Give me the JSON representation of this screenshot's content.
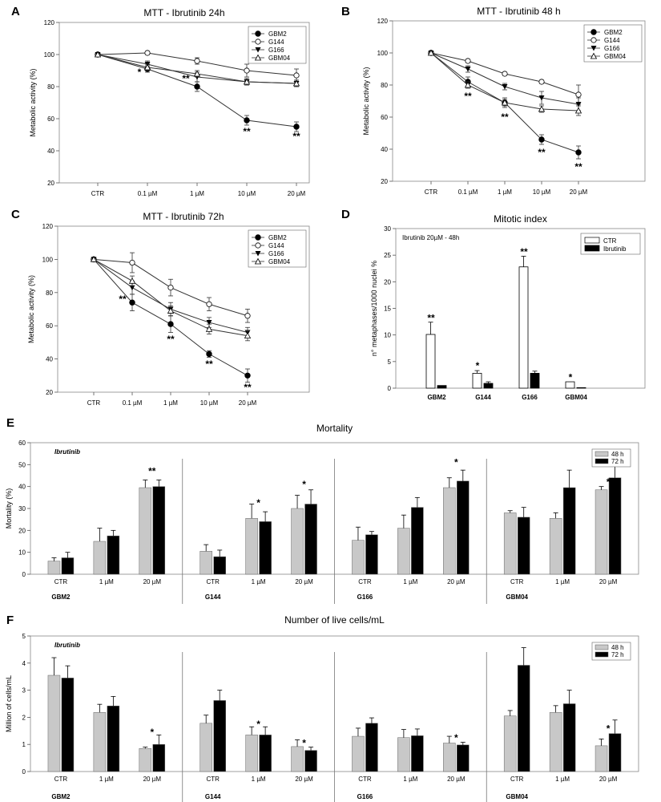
{
  "panels": {
    "A": "A",
    "B": "B",
    "C": "C",
    "D": "D",
    "E": "E",
    "F": "F"
  },
  "chart_data": [
    {
      "id": "A",
      "type": "line",
      "title": "MTT - Ibrutinib 24h",
      "xlabel": "",
      "ylabel": "Metabolic activity (%)",
      "categories": [
        "CTR",
        "0.1 µM",
        "1 µM",
        "10 µM",
        "20 µM"
      ],
      "ylim": [
        20,
        120
      ],
      "yticks": [
        20,
        40,
        60,
        80,
        100,
        120
      ],
      "series": [
        {
          "name": "GBM2",
          "marker": "filled-circle",
          "values": [
            100,
            91,
            80,
            59,
            55
          ],
          "errors": [
            0,
            2,
            3,
            3,
            3
          ]
        },
        {
          "name": "G144",
          "marker": "open-circle",
          "values": [
            100,
            101,
            96,
            90,
            87
          ],
          "errors": [
            0,
            1,
            2,
            4,
            4
          ]
        },
        {
          "name": "G166",
          "marker": "filled-triangle-down",
          "values": [
            100,
            94,
            86,
            83,
            82
          ],
          "errors": [
            0,
            2,
            3,
            2,
            2
          ]
        },
        {
          "name": "GBM04",
          "marker": "open-triangle-up",
          "values": [
            100,
            92,
            88,
            83,
            82
          ],
          "errors": [
            0,
            2,
            2,
            2,
            2
          ]
        }
      ],
      "annotations": [
        {
          "text": "*",
          "category": 1,
          "y": 89,
          "dx": -10
        },
        {
          "text": "**",
          "category": 2,
          "y": 85,
          "dx": -14
        },
        {
          "text": "**",
          "category": 3,
          "y": 52,
          "dx": 0
        },
        {
          "text": "**",
          "category": 4,
          "y": 49,
          "dx": 0
        }
      ]
    },
    {
      "id": "B",
      "type": "line",
      "title": "MTT - Ibrutinib 48 h",
      "xlabel": "",
      "ylabel": "Metabolic activity (%)",
      "categories": [
        "CTR",
        "0.1 µM",
        "1 µM",
        "10 µM",
        "20 µM"
      ],
      "ylim": [
        20,
        120
      ],
      "yticks": [
        20,
        40,
        60,
        80,
        100,
        120
      ],
      "series": [
        {
          "name": "GBM2",
          "marker": "filled-circle",
          "values": [
            100,
            82,
            69,
            46,
            38
          ],
          "errors": [
            0,
            3,
            3,
            3,
            4
          ]
        },
        {
          "name": "G144",
          "marker": "open-circle",
          "values": [
            100,
            95,
            87,
            82,
            74
          ],
          "errors": [
            0,
            1,
            1,
            1,
            6
          ]
        },
        {
          "name": "G166",
          "marker": "filled-triangle-down",
          "values": [
            100,
            90,
            79,
            72,
            68
          ],
          "errors": [
            0,
            2,
            2,
            4,
            4
          ]
        },
        {
          "name": "GBM04",
          "marker": "open-triangle-up",
          "values": [
            100,
            80,
            69,
            65,
            64
          ],
          "errors": [
            0,
            2,
            2,
            2,
            3
          ]
        }
      ],
      "annotations": [
        {
          "text": "**",
          "category": 1,
          "y": 73,
          "dx": 0
        },
        {
          "text": "**",
          "category": 2,
          "y": 60,
          "dx": 0
        },
        {
          "text": "**",
          "category": 3,
          "y": 38,
          "dx": 0
        },
        {
          "text": "**",
          "category": 4,
          "y": 29,
          "dx": 0
        }
      ]
    },
    {
      "id": "C",
      "type": "line",
      "title": "MTT - Ibrutinib 72h",
      "xlabel": "",
      "ylabel": "Metabolic activity (%)",
      "categories": [
        "CTR",
        "0.1 µM",
        "1 µM",
        "10 µM",
        "20 µM"
      ],
      "ylim": [
        20,
        120
      ],
      "yticks": [
        20,
        40,
        60,
        80,
        100,
        120
      ],
      "series": [
        {
          "name": "GBM2",
          "marker": "filled-circle",
          "values": [
            100,
            74,
            61,
            43,
            30
          ],
          "errors": [
            0,
            5,
            5,
            2,
            4
          ]
        },
        {
          "name": "G144",
          "marker": "open-circle",
          "values": [
            100,
            98,
            83,
            73,
            66
          ],
          "errors": [
            0,
            6,
            5,
            4,
            4
          ]
        },
        {
          "name": "G166",
          "marker": "filled-triangle-down",
          "values": [
            100,
            83,
            70,
            62,
            56
          ],
          "errors": [
            0,
            4,
            4,
            3,
            3
          ]
        },
        {
          "name": "GBM04",
          "marker": "open-triangle-up",
          "values": [
            100,
            87,
            69,
            58,
            54
          ],
          "errors": [
            0,
            3,
            3,
            3,
            3
          ]
        }
      ],
      "annotations": [
        {
          "text": "**",
          "category": 1,
          "y": 76,
          "dx": -12
        },
        {
          "text": "**",
          "category": 2,
          "y": 52,
          "dx": 0
        },
        {
          "text": "**",
          "category": 3,
          "y": 37,
          "dx": 0
        },
        {
          "text": "**",
          "category": 4,
          "y": 23,
          "dx": 0
        }
      ]
    },
    {
      "id": "D",
      "type": "bar",
      "title": "Mitotic index",
      "subtitle": "Ibrutinib 20µM - 48h",
      "xlabel": "",
      "ylabel": "n° metaphases/1000 nuclei %",
      "categories": [
        "GBM2",
        "G144",
        "G166",
        "GBM04"
      ],
      "ylim": [
        0,
        30
      ],
      "yticks": [
        0,
        5,
        10,
        15,
        20,
        25,
        30
      ],
      "series": [
        {
          "name": "CTR",
          "color": "#ffffff",
          "values": [
            10.1,
            2.8,
            22.8,
            1.2
          ],
          "errors": [
            2.3,
            0.5,
            2.0,
            0
          ]
        },
        {
          "name": "Ibrutinib",
          "color": "#000000",
          "values": [
            0.5,
            0.9,
            2.8,
            0.1
          ],
          "errors": [
            0,
            0.3,
            0.4,
            0
          ]
        }
      ],
      "annotations": [
        {
          "text": "**",
          "category": 0,
          "y": 13.2
        },
        {
          "text": "*",
          "category": 1,
          "y": 4.2
        },
        {
          "text": "**",
          "category": 2,
          "y": 25.6
        },
        {
          "text": "*",
          "category": 3,
          "y": 2.0
        }
      ]
    },
    {
      "id": "E",
      "type": "bar",
      "title": "Mortality",
      "subtitle": "Ibrutinib",
      "xlabel": "",
      "ylabel": "Mortality (%)",
      "ylim": [
        0,
        60
      ],
      "yticks": [
        0,
        10,
        20,
        30,
        40,
        50,
        60
      ],
      "categories": [
        "CTR",
        "1 µM",
        "20 µM"
      ],
      "series_names": [
        "48 h",
        "72 h"
      ],
      "series_colors": [
        "#c8c8c8",
        "#000000"
      ],
      "groups": [
        {
          "name": "GBM2",
          "s48": [
            6,
            15,
            39.5
          ],
          "e48": [
            1.5,
            6,
            3.5
          ],
          "s72": [
            7.5,
            17.5,
            40
          ],
          "e72": [
            2.5,
            2.5,
            3
          ],
          "stars": [
            {
              "i": 2,
              "text": "**",
              "y": 47
            }
          ]
        },
        {
          "name": "G144",
          "s48": [
            10.5,
            25.5,
            30
          ],
          "e48": [
            3,
            6.5,
            6
          ],
          "s72": [
            8,
            24,
            32
          ],
          "e72": [
            3,
            4.5,
            6.5
          ],
          "stars": [
            {
              "i": 1,
              "text": "*",
              "y": 32.5
            },
            {
              "i": 2,
              "text": "*",
              "y": 41
            }
          ]
        },
        {
          "name": "G166",
          "s48": [
            15.5,
            21,
            39.5
          ],
          "e48": [
            6,
            6,
            4.5
          ],
          "s72": [
            18,
            30.5,
            42.5
          ],
          "e72": [
            1.5,
            4.5,
            5
          ],
          "stars": [
            {
              "i": 2,
              "text": "*",
              "y": 51
            }
          ]
        },
        {
          "name": "GBM04",
          "s48": [
            28,
            25.5,
            38.5
          ],
          "e48": [
            1,
            2.5,
            1.5
          ],
          "s72": [
            26,
            39.5,
            44
          ],
          "e72": [
            4.5,
            8,
            8
          ],
          "stars": [
            {
              "i": 2,
              "text": "*",
              "y": 42
            }
          ]
        }
      ]
    },
    {
      "id": "F",
      "type": "bar",
      "title": "Number of live cells/mL",
      "subtitle": "Ibrutinib",
      "xlabel": "",
      "ylabel": "Million of cells/mL",
      "ylim": [
        0,
        5
      ],
      "yticks": [
        0,
        1,
        2,
        3,
        4,
        5
      ],
      "categories": [
        "CTR",
        "1 µM",
        "20 µM"
      ],
      "series_names": [
        "48 h",
        "72 h"
      ],
      "series_colors": [
        "#c8c8c8",
        "#000000"
      ],
      "groups": [
        {
          "name": "GBM2",
          "s48": [
            3.55,
            2.18,
            0.85
          ],
          "e48": [
            0.65,
            0.3,
            0.05
          ],
          "s72": [
            3.45,
            2.42,
            1.0
          ],
          "e72": [
            0.45,
            0.35,
            0.35
          ],
          "stars": [
            {
              "i": 2,
              "text": "*",
              "y": 1.45
            }
          ]
        },
        {
          "name": "G144",
          "s48": [
            1.78,
            1.35,
            0.92
          ],
          "e48": [
            0.3,
            0.3,
            0.25
          ],
          "s72": [
            2.62,
            1.35,
            0.78
          ],
          "e72": [
            0.38,
            0.3,
            0.12
          ],
          "stars": [
            {
              "i": 1,
              "text": "*",
              "y": 1.75
            },
            {
              "i": 2,
              "text": "*",
              "y": 1.05
            }
          ]
        },
        {
          "name": "G166",
          "s48": [
            1.3,
            1.25,
            1.05
          ],
          "e48": [
            0.3,
            0.3,
            0.25
          ],
          "s72": [
            1.78,
            1.32,
            0.98
          ],
          "e72": [
            0.2,
            0.25,
            0.1
          ],
          "stars": [
            {
              "i": 2,
              "text": "*",
              "y": 1.25
            }
          ]
        },
        {
          "name": "GBM04",
          "s48": [
            2.05,
            2.18,
            0.95
          ],
          "e48": [
            0.2,
            0.25,
            0.25
          ],
          "s72": [
            3.92,
            2.5,
            1.4
          ],
          "e72": [
            0.65,
            0.5,
            0.5
          ],
          "stars": [
            {
              "i": 2,
              "text": "*",
              "y": 1.58
            }
          ]
        }
      ]
    }
  ]
}
